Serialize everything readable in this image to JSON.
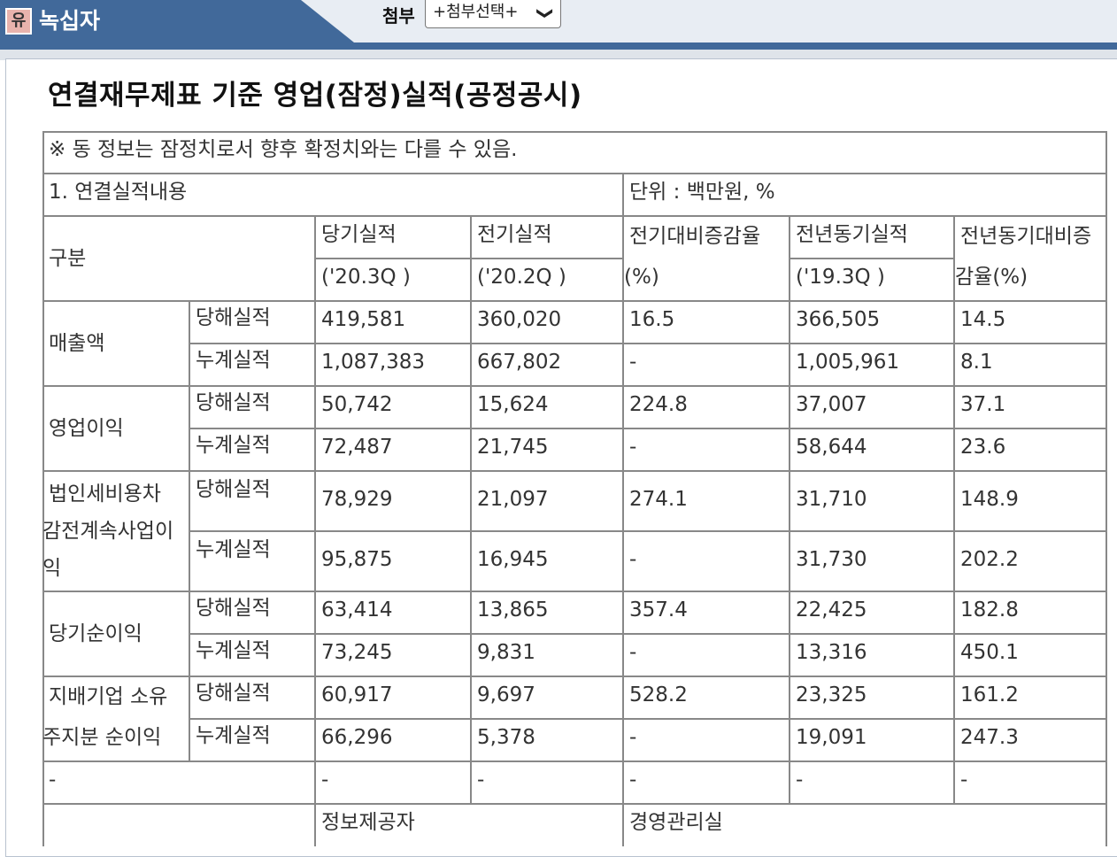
{
  "header": {
    "badge": "유",
    "company_name": "녹십자",
    "attach_label": "첨부",
    "attach_select_value": "+첨부선택+",
    "chevron_glyph": "❯"
  },
  "title": "연결재무제표 기준 영업(잠정)실적(공정공시)",
  "table": {
    "notice": "※ 동 정보는 잠정치로서 향후 확정치와는 다를 수 있음.",
    "section_label": "1. 연결실적내용",
    "unit": "단위 : 백만원, %",
    "header": {
      "category": "구분",
      "current": "당기실적",
      "current_period": "('20.3Q )",
      "previous": "전기실적",
      "previous_period": "('20.2Q )",
      "prev_change": "전기대비증감율",
      "prev_change_unit": "(%)",
      "yoy": "전년동기실적",
      "yoy_period": "('19.3Q )",
      "yoy_change_line1": "전년동기대비증",
      "yoy_change_line2": "감율(%)"
    },
    "groups": [
      {
        "name": "매출액",
        "rows": [
          {
            "type": "당해실적",
            "current": "419,581",
            "previous": "360,020",
            "prev_change": "16.5",
            "yoy": "366,505",
            "yoy_change": "14.5"
          },
          {
            "type": "누계실적",
            "current": "1,087,383",
            "previous": "667,802",
            "prev_change": "-",
            "yoy": "1,005,961",
            "yoy_change": "8.1"
          }
        ]
      },
      {
        "name": "영업이익",
        "rows": [
          {
            "type": "당해실적",
            "current": "50,742",
            "previous": "15,624",
            "prev_change": "224.8",
            "yoy": "37,007",
            "yoy_change": "37.1"
          },
          {
            "type": "누계실적",
            "current": "72,487",
            "previous": "21,745",
            "prev_change": "-",
            "yoy": "58,644",
            "yoy_change": "23.6"
          }
        ]
      },
      {
        "name_lines": [
          "법인세비용차",
          "감전계속사업이",
          "익"
        ],
        "rows": [
          {
            "type": "당해실적",
            "current": "78,929",
            "previous": "21,097",
            "prev_change": "274.1",
            "yoy": "31,710",
            "yoy_change": "148.9"
          },
          {
            "type": "누계실적",
            "current": "95,875",
            "previous": "16,945",
            "prev_change": "-",
            "yoy": "31,730",
            "yoy_change": "202.2"
          }
        ]
      },
      {
        "name": "당기순이익",
        "rows": [
          {
            "type": "당해실적",
            "current": "63,414",
            "previous": "13,865",
            "prev_change": "357.4",
            "yoy": "22,425",
            "yoy_change": "182.8"
          },
          {
            "type": "누계실적",
            "current": "73,245",
            "previous": "9,831",
            "prev_change": "-",
            "yoy": "13,316",
            "yoy_change": "450.1"
          }
        ]
      },
      {
        "name_lines": [
          "지배기업 소유",
          "주지분 순이익"
        ],
        "rows": [
          {
            "type": "당해실적",
            "current": "60,917",
            "previous": "9,697",
            "prev_change": "528.2",
            "yoy": "23,325",
            "yoy_change": "161.2"
          },
          {
            "type": "누계실적",
            "current": "66,296",
            "previous": "5,378",
            "prev_change": "-",
            "yoy": "19,091",
            "yoy_change": "247.3"
          }
        ]
      }
    ],
    "dash_row": [
      "-",
      "-",
      "-",
      "-",
      "-",
      "-"
    ],
    "footer": {
      "provider_label": "정보제공자",
      "provider_value": "경영관리실"
    }
  }
}
